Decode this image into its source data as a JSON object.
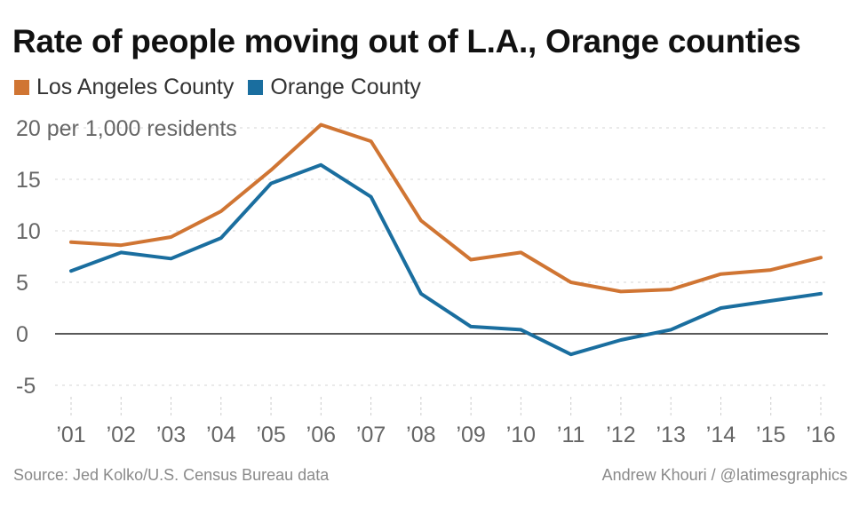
{
  "title": "Rate of people moving out of L.A., Orange counties",
  "footer": {
    "source": "Source: Jed Kolko/U.S. Census Bureau data",
    "credit": "Andrew Khouri / @latimesgraphics"
  },
  "chart_data": {
    "type": "line",
    "title": "Rate of people moving out of L.A., Orange counties",
    "ylabel": "per 1,000 residents",
    "xlabel": "",
    "ylim": [
      -5,
      20
    ],
    "yticks": [
      -5,
      0,
      5,
      10,
      15,
      20
    ],
    "ytick_labels": [
      "-5",
      "0",
      "5",
      "10",
      "15",
      "20 per 1,000 residents"
    ],
    "grid": true,
    "legend_position": "top-left",
    "categories": [
      "’01",
      "’02",
      "’03",
      "’04",
      "’05",
      "’06",
      "’07",
      "’08",
      "’09",
      "’10",
      "’11",
      "’12",
      "’13",
      "’14",
      "’15",
      "’16"
    ],
    "series": [
      {
        "name": "Los Angeles County",
        "color": "#d07533",
        "values": [
          8.9,
          8.6,
          9.4,
          11.9,
          15.9,
          20.3,
          18.7,
          11.0,
          7.2,
          7.9,
          5.0,
          4.1,
          4.3,
          5.8,
          6.2,
          7.4
        ]
      },
      {
        "name": "Orange County",
        "color": "#1a6e9f",
        "values": [
          6.1,
          7.9,
          7.3,
          9.3,
          14.6,
          16.4,
          13.3,
          3.9,
          0.7,
          0.4,
          -2.0,
          -0.6,
          0.4,
          2.5,
          3.2,
          3.9
        ]
      }
    ]
  }
}
